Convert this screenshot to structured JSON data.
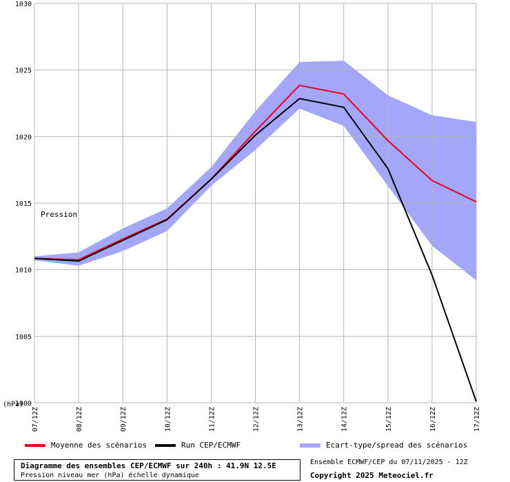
{
  "chart_data": {
    "type": "line",
    "x": [
      "07/12Z",
      "08/12Z",
      "09/12Z",
      "10/12Z",
      "11/12Z",
      "12/12Z",
      "13/12Z",
      "14/12Z",
      "15/12Z",
      "16/12Z",
      "17/12Z"
    ],
    "ylim": [
      1000,
      1030
    ],
    "yticks": [
      1000,
      1005,
      1010,
      1015,
      1020,
      1025,
      1030
    ],
    "ylabel": "(hPa)",
    "annotation": "Pression",
    "grid": true,
    "legend_position": "bottom",
    "series": [
      {
        "name": "Moyenne des scénarios",
        "type": "line",
        "color": "#e8001c",
        "values": [
          1010.85,
          1010.75,
          1012.3,
          1013.8,
          1016.8,
          1020.4,
          1023.85,
          1023.2,
          1019.7,
          1016.7,
          1015.1
        ]
      },
      {
        "name": "Run CEP/ECMWF",
        "type": "line",
        "color": "#000000",
        "values": [
          1010.85,
          1010.65,
          1012.2,
          1013.75,
          1016.8,
          1020.1,
          1022.85,
          1022.2,
          1017.6,
          1009.6,
          1000.1
        ]
      },
      {
        "name": "Ecart-type/spread des scénarios",
        "type": "band",
        "color": "#a4a6fa",
        "lower": [
          1010.7,
          1010.3,
          1011.4,
          1012.9,
          1016.3,
          1019.0,
          1022.1,
          1020.8,
          1016.3,
          1011.8,
          1009.2
        ],
        "upper": [
          1011.0,
          1011.3,
          1013.1,
          1014.6,
          1017.7,
          1021.9,
          1025.6,
          1025.7,
          1023.1,
          1021.6,
          1021.1
        ]
      }
    ]
  },
  "title_box": {
    "title": "Diagramme des ensembles CEP/ECMWF sur 240h : 41.9N 12.5E",
    "subtitle": "Pression niveau mer (hPa) échelle dynamique"
  },
  "run_info": "Ensemble ECMWF/CEP du 07/11/2025 - 12Z",
  "copyright": "Copyright 2025 Meteociel.fr"
}
